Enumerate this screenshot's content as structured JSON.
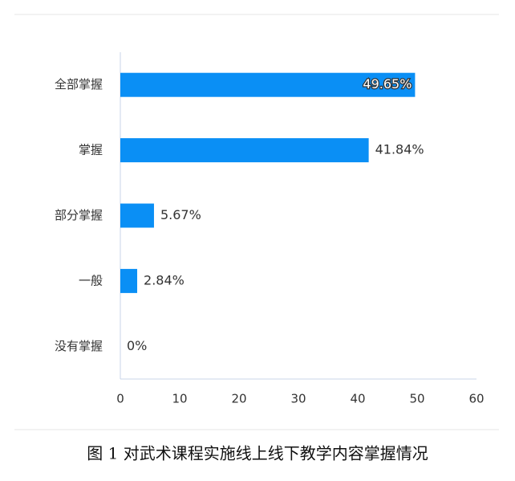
{
  "chart_data": {
    "type": "hbar",
    "categories": [
      "全部掌握",
      "掌握",
      "部分掌握",
      "一般",
      "没有掌握"
    ],
    "values": [
      49.65,
      41.84,
      5.67,
      2.84,
      0
    ],
    "value_labels": [
      "49.65%",
      "41.84%",
      "5.67%",
      "2.84%",
      "0%"
    ],
    "color": "#0a8ff5",
    "xlim": [
      0,
      60
    ],
    "xticks": [
      0,
      10,
      20,
      30,
      40,
      50,
      60
    ],
    "caption": "图 1  对武术课程实施线上线下教学内容掌握情况"
  }
}
